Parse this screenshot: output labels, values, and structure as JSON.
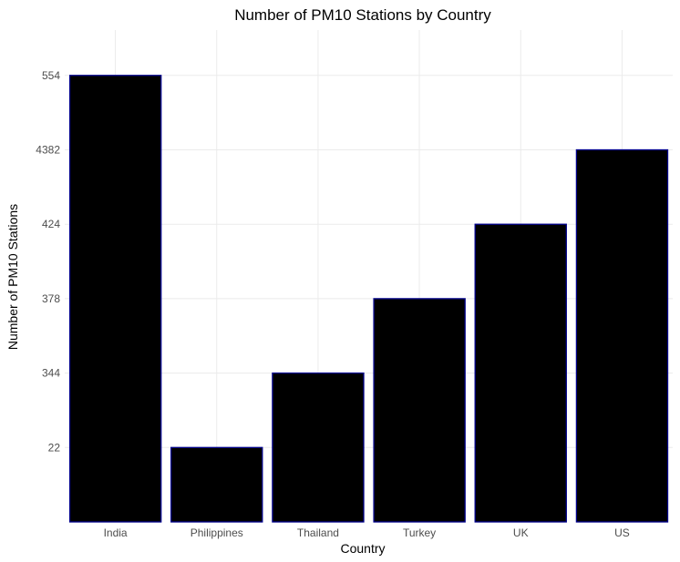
{
  "chart_data": {
    "type": "bar",
    "title": "Number of PM10 Stations by Country",
    "xlabel": "Country",
    "ylabel": "Number of PM10 Stations",
    "categories": [
      "India",
      "Philippines",
      "Thailand",
      "Turkey",
      "UK",
      "US"
    ],
    "values": [
      "554",
      "22",
      "344",
      "378",
      "424",
      "4382"
    ],
    "y_axis_type": "discrete",
    "y_levels": [
      "22",
      "344",
      "378",
      "424",
      "4382",
      "554"
    ],
    "grid": true,
    "legend": "none",
    "colors": {
      "bar_fill": "#000000",
      "bar_outline": "#00008b",
      "grid": "#ebebeb",
      "tick_text": "#4d4d4d"
    }
  }
}
